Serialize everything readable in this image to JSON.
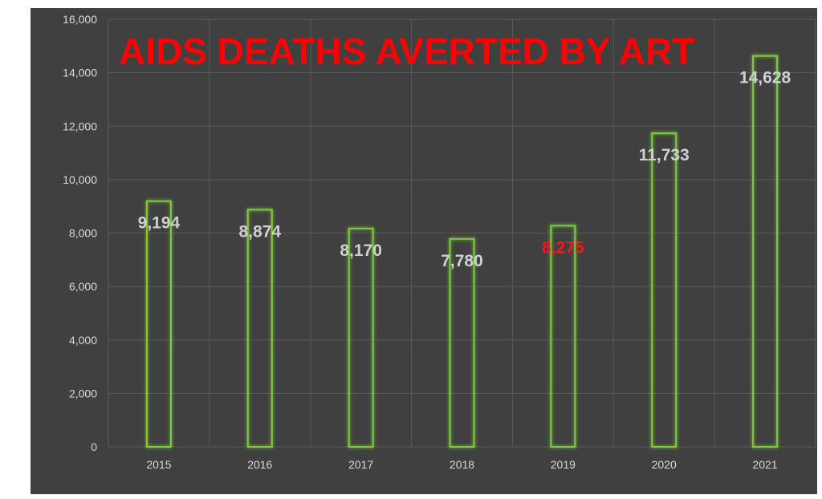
{
  "chart_data": {
    "type": "bar",
    "title": "AIDS DEATHS AVERTED BY ART",
    "xlabel": "",
    "ylabel": "",
    "categories": [
      "2015",
      "2016",
      "2017",
      "2018",
      "2019",
      "2020",
      "2021"
    ],
    "values": [
      9194,
      8874,
      8170,
      7780,
      8275,
      11733,
      14628
    ],
    "data_labels": [
      "9,194",
      "8,874",
      "8,170",
      "7,780",
      "8,275",
      "11,733",
      "14,628"
    ],
    "ylim": [
      0,
      16000
    ],
    "yticks": [
      0,
      2000,
      4000,
      6000,
      8000,
      10000,
      12000,
      14000,
      16000
    ],
    "ytick_labels": [
      "0",
      "2,000",
      "4,000",
      "6,000",
      "8,000",
      "10,000",
      "12,000",
      "14,000",
      "16,000"
    ],
    "grid": true,
    "legend": "none",
    "colors": {
      "background": "#404040",
      "bar_outline": "#7ecb3c",
      "bar_glow": "#4f8a1e",
      "grid": "#5a5a5a",
      "tick_label": "#d9d9d9",
      "data_label": "#d0d0d0",
      "highlight_label": "#ee1c1c",
      "title": "#ff0000"
    },
    "highlight_index": 4
  }
}
